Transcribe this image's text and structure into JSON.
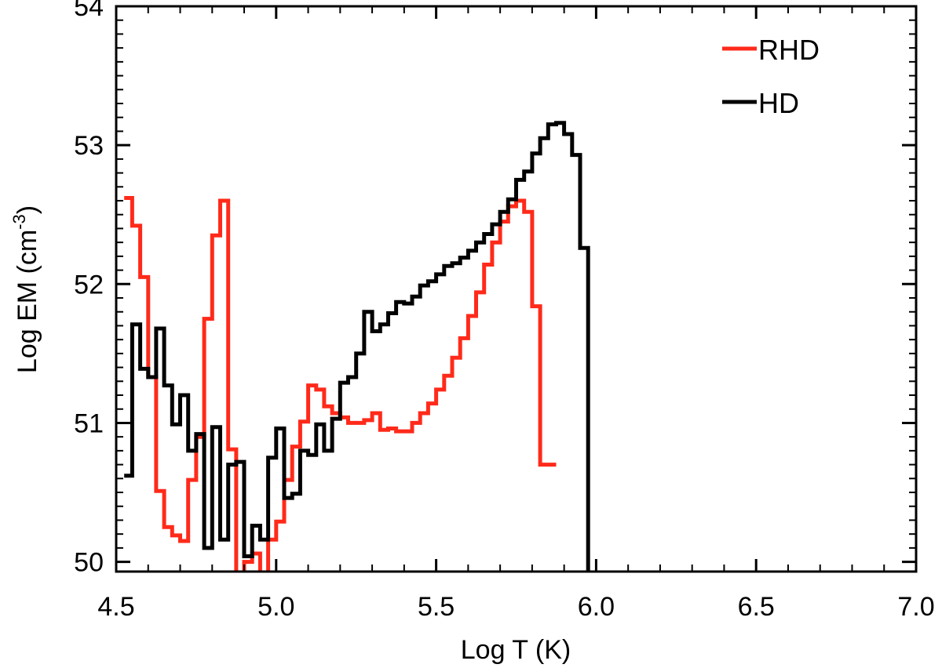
{
  "chart_data": {
    "type": "line",
    "xlabel": "Log T (K)",
    "ylabel_main": "Log EM (cm",
    "ylabel_sup": "-3",
    "ylabel_tail": ")",
    "xlim": [
      4.5,
      7.0
    ],
    "ylim": [
      49.93,
      54.0
    ],
    "xticks": [
      4.5,
      5.0,
      5.5,
      6.0,
      6.5,
      7.0
    ],
    "xtick_labels": [
      "4.5",
      "5.0",
      "5.5",
      "6.0",
      "6.5",
      "7.0"
    ],
    "yticks": [
      50,
      51,
      52,
      53,
      54
    ],
    "ytick_labels": [
      "50",
      "51",
      "52",
      "53",
      "54"
    ],
    "grid": false,
    "legend_position": "top-right",
    "bin_width": 0.025,
    "series": [
      {
        "name": "RHD",
        "color": "#ff2a1a",
        "x0": 4.525,
        "values": [
          52.62,
          52.42,
          52.05,
          51.33,
          50.51,
          50.25,
          50.19,
          50.15,
          50.59,
          50.9,
          51.75,
          52.35,
          52.6,
          50.81,
          49.6,
          50.0,
          50.06,
          49.9,
          50.16,
          50.29,
          50.59,
          50.83,
          51.01,
          51.27,
          51.24,
          51.12,
          51.07,
          51.04,
          51.0,
          51.0,
          51.02,
          51.07,
          50.95,
          50.96,
          50.94,
          50.94,
          51.0,
          51.07,
          51.14,
          51.24,
          51.34,
          51.47,
          51.61,
          51.77,
          51.94,
          52.14,
          52.3,
          52.45,
          52.56,
          52.6,
          52.52,
          51.84,
          50.7,
          50.7
        ]
      },
      {
        "name": "HD",
        "color": "#000000",
        "x0": 4.525,
        "values": [
          50.62,
          51.71,
          51.39,
          51.33,
          51.68,
          51.27,
          50.99,
          51.2,
          50.8,
          50.92,
          50.1,
          50.97,
          50.16,
          50.7,
          50.72,
          50.04,
          50.26,
          50.16,
          50.75,
          50.96,
          50.46,
          50.49,
          50.8,
          50.77,
          50.99,
          50.8,
          51.03,
          51.29,
          51.33,
          51.5,
          51.8,
          51.66,
          51.71,
          51.79,
          51.87,
          51.86,
          51.91,
          51.99,
          52.02,
          52.07,
          52.13,
          52.15,
          52.19,
          52.24,
          52.3,
          52.36,
          52.43,
          52.52,
          52.61,
          52.75,
          52.81,
          52.94,
          53.05,
          53.15,
          53.16,
          53.08,
          52.93,
          52.26,
          49.6
        ]
      }
    ]
  }
}
